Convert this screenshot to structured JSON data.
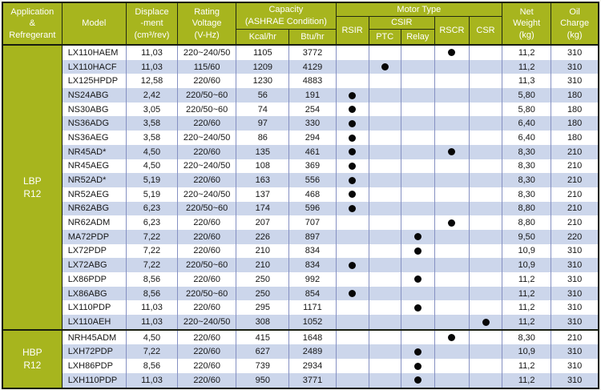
{
  "colors": {
    "header_green": "#a7b51e",
    "stripe_blue": "#ccd6eb",
    "grid_line": "#8590c2",
    "frame_dark": "#181e0f",
    "dot_black": "#070707"
  },
  "table": {
    "header": {
      "application_lines": [
        "Application",
        "&",
        "Refregerant"
      ],
      "model": "Model",
      "displacement_lines": [
        "Displace",
        "-ment",
        "(cm³/rev)"
      ],
      "voltage_lines": [
        "Rating",
        "Voltage",
        "(V-Hz)"
      ],
      "capacity_lines": [
        "Capacity",
        "(ASHRAE  Condition)"
      ],
      "capacity_kcal": "Kcal/hr",
      "capacity_btu": "Btu/hr",
      "motor_type": "Motor  Type",
      "motor_rsir": "RSIR",
      "motor_csir": "CSIR",
      "motor_ptc": "PTC",
      "motor_relay": "Relay",
      "motor_rscr": "RSCR",
      "motor_csr": "CSR",
      "net_weight_lines": [
        "Net",
        "Weight",
        "(kg)"
      ],
      "oil_charge_lines": [
        "Oil",
        "Charge",
        "(kg)"
      ]
    },
    "groups": [
      {
        "id": "lbp-r12",
        "label_lines": [
          "LBP",
          "R12"
        ],
        "rows": [
          {
            "model": "LX110HAEM",
            "displacement": "11,03",
            "voltage": "220~240/50",
            "kcal": "1105",
            "btu": "3772",
            "motor": {
              "rsir": false,
              "ptc": false,
              "relay": false,
              "rscr": true,
              "csr": false
            },
            "net_weight": "11,2",
            "oil_charge": "310"
          },
          {
            "model": "LX110HACF",
            "displacement": "11,03",
            "voltage": "115/60",
            "kcal": "1209",
            "btu": "4129",
            "motor": {
              "rsir": false,
              "ptc": true,
              "relay": false,
              "rscr": false,
              "csr": false
            },
            "net_weight": "11,2",
            "oil_charge": "310"
          },
          {
            "model": "LX125HPDP",
            "displacement": "12,58",
            "voltage": "220/60",
            "kcal": "1230",
            "btu": "4883",
            "motor": {
              "rsir": false,
              "ptc": false,
              "relay": false,
              "rscr": false,
              "csr": false
            },
            "net_weight": "11,3",
            "oil_charge": "310"
          },
          {
            "model": "NS24ABG",
            "displacement": "2,42",
            "voltage": "220/50~60",
            "kcal": "56",
            "btu": "191",
            "motor": {
              "rsir": true,
              "ptc": false,
              "relay": false,
              "rscr": false,
              "csr": false
            },
            "net_weight": "5,80",
            "oil_charge": "180"
          },
          {
            "model": "NS30ABG",
            "displacement": "3,05",
            "voltage": "220/50~60",
            "kcal": "74",
            "btu": "254",
            "motor": {
              "rsir": true,
              "ptc": false,
              "relay": false,
              "rscr": false,
              "csr": false
            },
            "net_weight": "5,80",
            "oil_charge": "180"
          },
          {
            "model": "NS36ADG",
            "displacement": "3,58",
            "voltage": "220/60",
            "kcal": "97",
            "btu": "330",
            "motor": {
              "rsir": true,
              "ptc": false,
              "relay": false,
              "rscr": false,
              "csr": false
            },
            "net_weight": "6,40",
            "oil_charge": "180"
          },
          {
            "model": "NS36AEG",
            "displacement": "3,58",
            "voltage": "220~240/50",
            "kcal": "86",
            "btu": "294",
            "motor": {
              "rsir": true,
              "ptc": false,
              "relay": false,
              "rscr": false,
              "csr": false
            },
            "net_weight": "6,40",
            "oil_charge": "180"
          },
          {
            "model": "NR45AD*",
            "displacement": "4,50",
            "voltage": "220/60",
            "kcal": "135",
            "btu": "461",
            "motor": {
              "rsir": true,
              "ptc": false,
              "relay": false,
              "rscr": true,
              "csr": false
            },
            "net_weight": "8,30",
            "oil_charge": "210"
          },
          {
            "model": "NR45AEG",
            "displacement": "4,50",
            "voltage": "220~240/50",
            "kcal": "108",
            "btu": "369",
            "motor": {
              "rsir": true,
              "ptc": false,
              "relay": false,
              "rscr": false,
              "csr": false
            },
            "net_weight": "8,30",
            "oil_charge": "210"
          },
          {
            "model": "NR52AD*",
            "displacement": "5,19",
            "voltage": "220/60",
            "kcal": "163",
            "btu": "556",
            "motor": {
              "rsir": true,
              "ptc": false,
              "relay": false,
              "rscr": false,
              "csr": false
            },
            "net_weight": "8,30",
            "oil_charge": "210"
          },
          {
            "model": "NR52AEG",
            "displacement": "5,19",
            "voltage": "220~240/50",
            "kcal": "137",
            "btu": "468",
            "motor": {
              "rsir": true,
              "ptc": false,
              "relay": false,
              "rscr": false,
              "csr": false
            },
            "net_weight": "8,30",
            "oil_charge": "210"
          },
          {
            "model": "NR62ABG",
            "displacement": "6,23",
            "voltage": "220/50~60",
            "kcal": "174",
            "btu": "596",
            "motor": {
              "rsir": true,
              "ptc": false,
              "relay": false,
              "rscr": false,
              "csr": false
            },
            "net_weight": "8,80",
            "oil_charge": "210"
          },
          {
            "model": "NR62ADM",
            "displacement": "6,23",
            "voltage": "220/60",
            "kcal": "207",
            "btu": "707",
            "motor": {
              "rsir": false,
              "ptc": false,
              "relay": false,
              "rscr": true,
              "csr": false
            },
            "net_weight": "8,80",
            "oil_charge": "210"
          },
          {
            "model": "MA72PDP",
            "displacement": "7,22",
            "voltage": "220/60",
            "kcal": "226",
            "btu": "897",
            "motor": {
              "rsir": false,
              "ptc": false,
              "relay": true,
              "rscr": false,
              "csr": false
            },
            "net_weight": "9,50",
            "oil_charge": "220"
          },
          {
            "model": "LX72PDP",
            "displacement": "7,22",
            "voltage": "220/60",
            "kcal": "210",
            "btu": "834",
            "motor": {
              "rsir": false,
              "ptc": false,
              "relay": true,
              "rscr": false,
              "csr": false
            },
            "net_weight": "10,9",
            "oil_charge": "310"
          },
          {
            "model": "LX72ABG",
            "displacement": "7,22",
            "voltage": "220/50~60",
            "kcal": "210",
            "btu": "834",
            "motor": {
              "rsir": true,
              "ptc": false,
              "relay": false,
              "rscr": false,
              "csr": false
            },
            "net_weight": "10,9",
            "oil_charge": "310"
          },
          {
            "model": "LX86PDP",
            "displacement": "8,56",
            "voltage": "220/60",
            "kcal": "250",
            "btu": "992",
            "motor": {
              "rsir": false,
              "ptc": false,
              "relay": true,
              "rscr": false,
              "csr": false
            },
            "net_weight": "11,2",
            "oil_charge": "310"
          },
          {
            "model": "LX86ABG",
            "displacement": "8,56",
            "voltage": "220/50~60",
            "kcal": "250",
            "btu": "854",
            "motor": {
              "rsir": true,
              "ptc": false,
              "relay": false,
              "rscr": false,
              "csr": false
            },
            "net_weight": "11,2",
            "oil_charge": "310"
          },
          {
            "model": "LX110PDP",
            "displacement": "11,03",
            "voltage": "220/60",
            "kcal": "295",
            "btu": "1171",
            "motor": {
              "rsir": false,
              "ptc": false,
              "relay": true,
              "rscr": false,
              "csr": false
            },
            "net_weight": "11,2",
            "oil_charge": "310"
          },
          {
            "model": "LX110AEH",
            "displacement": "11,03",
            "voltage": "220~240/50",
            "kcal": "308",
            "btu": "1052",
            "motor": {
              "rsir": false,
              "ptc": false,
              "relay": false,
              "rscr": false,
              "csr": true
            },
            "net_weight": "11,2",
            "oil_charge": "310"
          }
        ]
      },
      {
        "id": "hbp-r12",
        "label_lines": [
          "HBP",
          "R12"
        ],
        "rows": [
          {
            "model": "NRH45ADM",
            "displacement": "4,50",
            "voltage": "220/60",
            "kcal": "415",
            "btu": "1648",
            "motor": {
              "rsir": false,
              "ptc": false,
              "relay": false,
              "rscr": true,
              "csr": false
            },
            "net_weight": "8,30",
            "oil_charge": "210"
          },
          {
            "model": "LXH72PDP",
            "displacement": "7,22",
            "voltage": "220/60",
            "kcal": "627",
            "btu": "2489",
            "motor": {
              "rsir": false,
              "ptc": false,
              "relay": true,
              "rscr": false,
              "csr": false
            },
            "net_weight": "10,9",
            "oil_charge": "310"
          },
          {
            "model": "LXH86PDP",
            "displacement": "8,56",
            "voltage": "220/60",
            "kcal": "739",
            "btu": "2934",
            "motor": {
              "rsir": false,
              "ptc": false,
              "relay": true,
              "rscr": false,
              "csr": false
            },
            "net_weight": "11,2",
            "oil_charge": "310"
          },
          {
            "model": "LXH110PDP",
            "displacement": "11,03",
            "voltage": "220/60",
            "kcal": "950",
            "btu": "3771",
            "motor": {
              "rsir": false,
              "ptc": false,
              "relay": true,
              "rscr": false,
              "csr": false
            },
            "net_weight": "11,2",
            "oil_charge": "310"
          }
        ]
      }
    ]
  }
}
